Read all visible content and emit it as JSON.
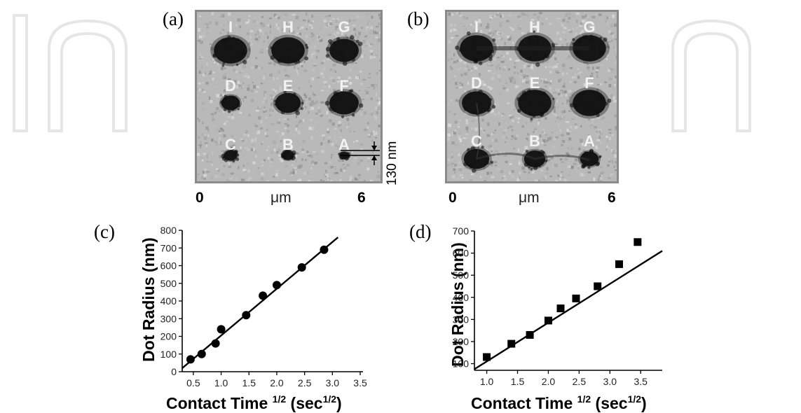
{
  "panels": {
    "a": {
      "letter": "(a)"
    },
    "b": {
      "letter": "(b)"
    },
    "c": {
      "letter": "(c)"
    },
    "d": {
      "letter": "(d)"
    }
  },
  "afm": {
    "labels": [
      "I",
      "H",
      "G",
      "D",
      "E",
      "F",
      "C",
      "B",
      "A"
    ],
    "axis_start": "0",
    "axis_unit": "μm",
    "axis_end": "6",
    "scale_bar_label": "130 nm",
    "a_dot_darkness": [
      1.0,
      1.0,
      0.85,
      0.45,
      0.7,
      0.85,
      0.25,
      0.2,
      0.1
    ],
    "b_dot_darkness": [
      1.0,
      1.0,
      1.0,
      0.85,
      1.0,
      1.0,
      0.7,
      0.55,
      0.45
    ],
    "colors": {
      "background": "#b9b9b9",
      "dot": "#0a0a0a",
      "frame": "#8a8a8a"
    }
  },
  "chart_data": [
    {
      "panel": "c",
      "type": "scatter",
      "xlabel_main": "Contact Time",
      "xlabel_sup": "1/2",
      "xlabel_unit": "(sec",
      "xlabel_unit_sup": "1/2",
      "xlabel_close": ")",
      "ylabel": "Dot Radius (nm)",
      "x_ticks": [
        "0.5",
        "1.0",
        "1.5",
        "2.0",
        "2.5",
        "3.0",
        "3.5"
      ],
      "y_ticks": [
        "0",
        "100",
        "200",
        "300",
        "400",
        "500",
        "600",
        "700",
        "800"
      ],
      "xlim": [
        0.3,
        3.55
      ],
      "ylim": [
        0,
        800
      ],
      "marker": "circle",
      "points": [
        {
          "x": 0.45,
          "y": 70
        },
        {
          "x": 0.65,
          "y": 100
        },
        {
          "x": 0.9,
          "y": 160
        },
        {
          "x": 1.0,
          "y": 240
        },
        {
          "x": 1.45,
          "y": 320
        },
        {
          "x": 1.75,
          "y": 430
        },
        {
          "x": 2.0,
          "y": 490
        },
        {
          "x": 2.45,
          "y": 590
        },
        {
          "x": 2.85,
          "y": 690
        }
      ],
      "fit_line": [
        {
          "x": 0.3,
          "y": 20
        },
        {
          "x": 3.1,
          "y": 760
        }
      ]
    },
    {
      "panel": "d",
      "type": "scatter",
      "xlabel_main": "Contact Time",
      "xlabel_sup": "1/2",
      "xlabel_unit": "(sec",
      "xlabel_unit_sup": "1/2",
      "xlabel_close": ")",
      "ylabel": "Dot Radius (nm)",
      "x_ticks": [
        "1.0",
        "1.5",
        "2.0",
        "2.5",
        "3.0",
        "3.5"
      ],
      "y_ticks": [
        "100",
        "200",
        "300",
        "400",
        "500",
        "600",
        "700"
      ],
      "xlim": [
        0.8,
        3.85
      ],
      "ylim": [
        70,
        700
      ],
      "marker": "square",
      "points": [
        {
          "x": 1.0,
          "y": 130
        },
        {
          "x": 1.4,
          "y": 190
        },
        {
          "x": 1.7,
          "y": 230
        },
        {
          "x": 2.0,
          "y": 295
        },
        {
          "x": 2.2,
          "y": 350
        },
        {
          "x": 2.45,
          "y": 395
        },
        {
          "x": 2.8,
          "y": 450
        },
        {
          "x": 3.15,
          "y": 550
        },
        {
          "x": 3.45,
          "y": 650
        }
      ],
      "fit_line": [
        {
          "x": 0.8,
          "y": 75
        },
        {
          "x": 3.85,
          "y": 610
        }
      ]
    }
  ]
}
